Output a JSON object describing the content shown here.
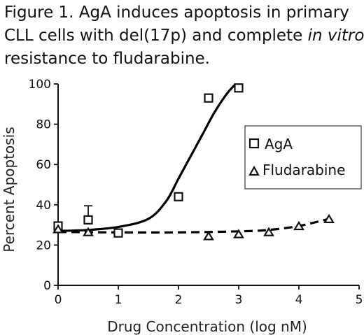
{
  "caption": {
    "line1": "Figure 1. AgA induces apoptosis in primary",
    "line2_prefix": "CLL cells with del(17p) and complete ",
    "line2_italic": "in vitro",
    "line3": "resistance to fludarabine."
  },
  "chart_data": {
    "type": "scatter",
    "title": "",
    "xlabel": "Drug Concentration (log nM)",
    "ylabel": "Percent Apoptosis",
    "xlim": [
      0,
      5
    ],
    "ylim": [
      0,
      100
    ],
    "xticks": [
      0,
      1,
      2,
      3,
      4,
      5
    ],
    "yticks": [
      0,
      20,
      40,
      60,
      80,
      100
    ],
    "grid": false,
    "legend_position": "right",
    "series": [
      {
        "name": "AgA",
        "marker": "square",
        "line_style": "solid",
        "color": "#000000",
        "points": [
          {
            "x": 0,
            "y": 29.5
          },
          {
            "x": 0.5,
            "y": 32.5,
            "error_up": 7
          },
          {
            "x": 1,
            "y": 26
          },
          {
            "x": 2,
            "y": 44
          },
          {
            "x": 2.5,
            "y": 93
          },
          {
            "x": 3,
            "y": 98
          }
        ],
        "fit": [
          [
            0,
            27
          ],
          [
            0.5,
            27.5
          ],
          [
            1,
            29
          ],
          [
            1.5,
            33
          ],
          [
            1.8,
            42
          ],
          [
            2.0,
            53
          ],
          [
            2.2,
            64
          ],
          [
            2.4,
            75
          ],
          [
            2.6,
            86
          ],
          [
            2.8,
            95
          ],
          [
            2.95,
            100
          ]
        ]
      },
      {
        "name": "Fludarabine",
        "marker": "triangle",
        "line_style": "dashed",
        "color": "#000000",
        "points": [
          {
            "x": 0,
            "y": 28
          },
          {
            "x": 0.5,
            "y": 26.5
          },
          {
            "x": 2.5,
            "y": 24.5
          },
          {
            "x": 3,
            "y": 25.5
          },
          {
            "x": 3.5,
            "y": 26.5
          },
          {
            "x": 4,
            "y": 29.5
          },
          {
            "x": 4.5,
            "y": 33
          }
        ],
        "fit": [
          [
            0,
            26.5
          ],
          [
            1,
            26.3
          ],
          [
            2,
            26.3
          ],
          [
            3,
            26.8
          ],
          [
            3.5,
            27.5
          ],
          [
            4,
            29.5
          ],
          [
            4.5,
            33
          ]
        ]
      }
    ]
  }
}
